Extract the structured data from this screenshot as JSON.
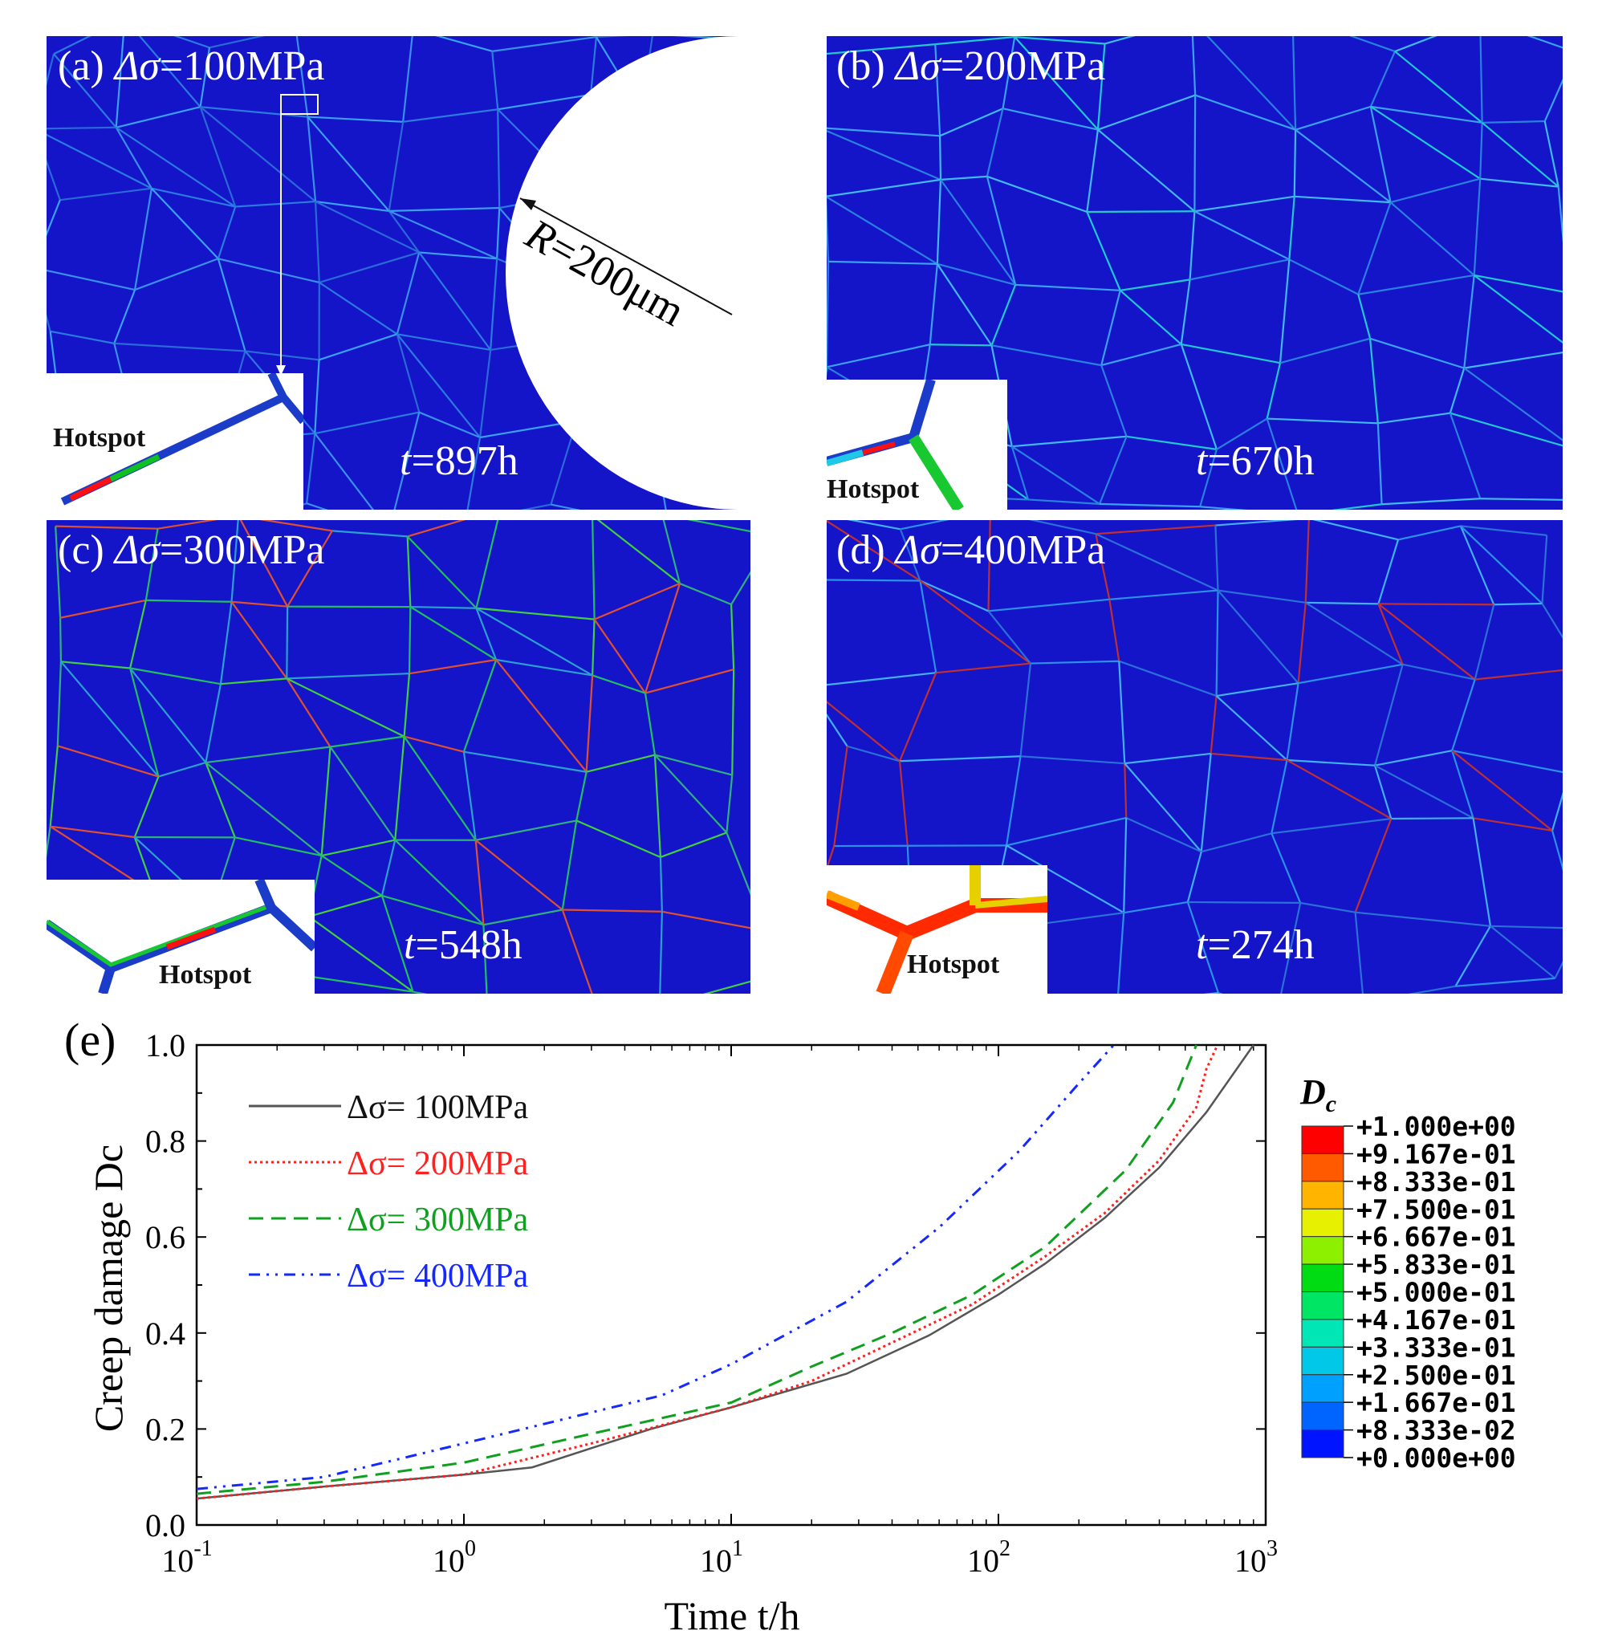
{
  "panels": [
    {
      "label": "(a)",
      "symbol": "Δσ",
      "eq": "=100MPa",
      "time_sym": "t",
      "time_val": "=897h",
      "hotspot": "Hotspot",
      "radius_label": "R=200μm"
    },
    {
      "label": "(b)",
      "symbol": "Δσ",
      "eq": "=200MPa",
      "time_sym": "t",
      "time_val": "=670h",
      "hotspot": "Hotspot"
    },
    {
      "label": "(c)",
      "symbol": "Δσ",
      "eq": "=300MPa",
      "time_sym": "t",
      "time_val": "=548h",
      "hotspot": "Hotspot"
    },
    {
      "label": "(d)",
      "symbol": "Δσ",
      "eq": "=400MPa",
      "time_sym": "t",
      "time_val": "=274h",
      "hotspot": "Hotspot"
    }
  ],
  "colorbar": {
    "title": "D",
    "title_sub": "c",
    "labels": [
      "+1.000e+00",
      "+9.167e-01",
      "+8.333e-01",
      "+7.500e-01",
      "+6.667e-01",
      "+5.833e-01",
      "+5.000e-01",
      "+4.167e-01",
      "+3.333e-01",
      "+2.500e-01",
      "+1.667e-01",
      "+8.333e-02",
      "+0.000e+00"
    ],
    "colors": [
      "#ff0000",
      "#ff5a00",
      "#ffb400",
      "#e6f000",
      "#8cf000",
      "#00dc14",
      "#00e664",
      "#00e6b4",
      "#00c8e6",
      "#00a0ff",
      "#0064ff",
      "#0014ff"
    ]
  },
  "chart_data": {
    "panel_label": "(e)",
    "type": "line",
    "xscale": "log",
    "xlim": [
      0.1,
      1000
    ],
    "ylim": [
      0,
      1.0
    ],
    "xlabel": "Time  t/h",
    "ylabel": "Creep damage  Dc",
    "yticks": [
      "0.0",
      "0.2",
      "0.4",
      "0.6",
      "0.8",
      "1.0"
    ],
    "xticks": [
      {
        "base": "10",
        "exp": "-1"
      },
      {
        "base": "10",
        "exp": "0"
      },
      {
        "base": "10",
        "exp": "1"
      },
      {
        "base": "10",
        "exp": "2"
      },
      {
        "base": "10",
        "exp": "3"
      }
    ],
    "series": [
      {
        "name": "Δσ= 100MPa",
        "color": "#555555",
        "dash": "solid",
        "x": [
          0.1,
          0.3,
          1,
          1.8,
          5,
          10,
          27,
          55,
          100,
          150,
          250,
          400,
          600,
          900
        ],
        "y": [
          0.055,
          0.08,
          0.105,
          0.12,
          0.2,
          0.245,
          0.315,
          0.395,
          0.48,
          0.545,
          0.64,
          0.745,
          0.86,
          1.0
        ]
      },
      {
        "name": "Δσ= 200MPa",
        "color": "#ff2020",
        "dash": "dot",
        "x": [
          0.1,
          0.3,
          1,
          3,
          10,
          20,
          40,
          80,
          150,
          250,
          400,
          550,
          600,
          660
        ],
        "y": [
          0.055,
          0.08,
          0.105,
          0.17,
          0.245,
          0.3,
          0.38,
          0.46,
          0.56,
          0.65,
          0.76,
          0.87,
          0.95,
          1.0
        ]
      },
      {
        "name": "Δσ= 300MPa",
        "color": "#10a020",
        "dash": "dash",
        "x": [
          0.1,
          0.3,
          1,
          3,
          10,
          20,
          40,
          80,
          150,
          300,
          450,
          550
        ],
        "y": [
          0.065,
          0.09,
          0.13,
          0.19,
          0.255,
          0.33,
          0.4,
          0.48,
          0.58,
          0.74,
          0.88,
          1.0
        ]
      },
      {
        "name": "Δσ= 400MPa",
        "color": "#1428ff",
        "dash": "dashdot",
        "x": [
          0.1,
          0.3,
          1,
          5.5,
          10,
          27,
          60,
          120,
          200,
          270
        ],
        "y": [
          0.075,
          0.1,
          0.17,
          0.27,
          0.335,
          0.465,
          0.62,
          0.78,
          0.92,
          1.0
        ]
      }
    ]
  }
}
